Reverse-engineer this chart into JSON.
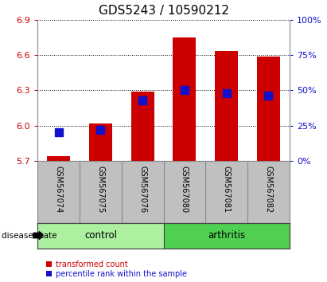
{
  "title": "GDS5243 / 10590212",
  "samples": [
    "GSM567074",
    "GSM567075",
    "GSM567076",
    "GSM567080",
    "GSM567081",
    "GSM567082"
  ],
  "red_values": [
    5.74,
    6.02,
    6.29,
    6.75,
    6.635,
    6.585
  ],
  "blue_percentiles": [
    20,
    22,
    43,
    50,
    48,
    46
  ],
  "ymin": 5.7,
  "ymax": 6.9,
  "yticks_left": [
    5.7,
    6.0,
    6.3,
    6.6,
    6.9
  ],
  "yticks_right": [
    0,
    25,
    50,
    75,
    100
  ],
  "groups": [
    {
      "label": "control",
      "samples_idx": [
        0,
        1,
        2
      ],
      "color": "#adf0a0"
    },
    {
      "label": "arthritis",
      "samples_idx": [
        3,
        4,
        5
      ],
      "color": "#50d050"
    }
  ],
  "bar_color": "#cc0000",
  "blue_color": "#1111cc",
  "bar_width": 0.55,
  "blue_marker_size": 45,
  "grid_color": "#000000",
  "bg_color": "#ffffff",
  "tick_label_color_left": "#cc0000",
  "tick_label_color_right": "#1111cc",
  "xlabel_area_color": "#c0c0c0",
  "disease_state_label": "disease state",
  "legend_red_label": "transformed count",
  "legend_blue_label": "percentile rank within the sample",
  "title_fontsize": 11,
  "tick_fontsize": 8,
  "sample_fontsize": 7,
  "group_fontsize": 8.5
}
